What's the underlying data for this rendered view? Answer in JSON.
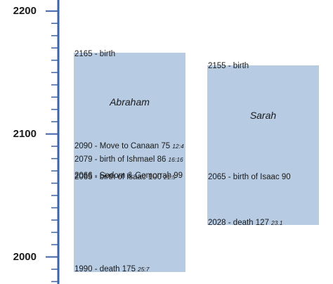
{
  "axis": {
    "min_year": 1978,
    "max_year": 2209,
    "minor_tick_step": 10,
    "labels": [
      "2200",
      "2100",
      "2000"
    ],
    "label_years": [
      2200,
      2100,
      2000
    ],
    "line_color": "#3d64a9"
  },
  "box_color": "#b7cbe3",
  "people": [
    {
      "name": "Abraham",
      "start_year": 2166,
      "end_year": 1988,
      "name_year": 2126,
      "events": [
        {
          "year": 2165,
          "text": "2165 - birth",
          "ref": ""
        },
        {
          "year": 2090,
          "text": "2090 - Move to Canaan 75",
          "ref": "12:4"
        },
        {
          "year": 2079,
          "text": "2079 - birth of Ishmael 86",
          "ref": "16:16"
        },
        {
          "year": 2066,
          "text": "2066 - Sodom & Gomorrah 99",
          "ref": ""
        },
        {
          "year": 2065,
          "text": "2065 - birth of Isaac 100",
          "ref": "21:5"
        },
        {
          "year": 1990,
          "text": "1990 - death 175",
          "ref": "25:7"
        }
      ]
    },
    {
      "name": "Sarah",
      "start_year": 2156,
      "end_year": 2026,
      "name_year": 2115,
      "events": [
        {
          "year": 2155,
          "text": "2155 - birth",
          "ref": ""
        },
        {
          "year": 2065,
          "text": "2065 - birth of Isaac 90",
          "ref": ""
        },
        {
          "year": 2028,
          "text": "2028 - death 127",
          "ref": "23.1"
        }
      ]
    }
  ]
}
